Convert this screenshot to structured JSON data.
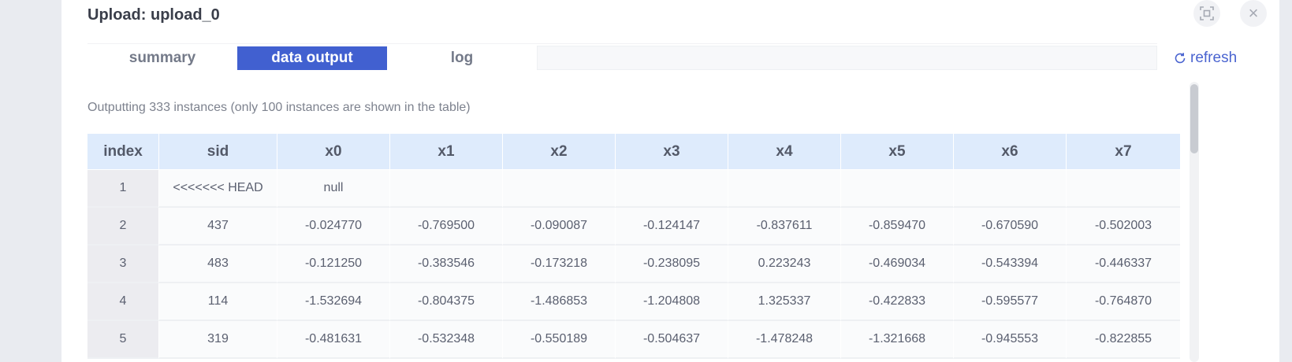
{
  "dialog": {
    "title": "Upload: upload_0",
    "close_label": "×"
  },
  "tabs": [
    {
      "label": "summary",
      "active": false
    },
    {
      "label": "data output",
      "active": true
    },
    {
      "label": "log",
      "active": false
    }
  ],
  "refresh_label": "refresh",
  "info_text": "Outputting 333 instances (only 100 instances are shown in the table)",
  "table": {
    "columns": [
      "index",
      "sid",
      "x0",
      "x1",
      "x2",
      "x3",
      "x4",
      "x5",
      "x6",
      "x7"
    ],
    "rows": [
      [
        "1",
        "<<<<<<< HEAD",
        "null",
        "",
        "",
        "",
        "",
        "",
        "",
        ""
      ],
      [
        "2",
        "437",
        "-0.024770",
        "-0.769500",
        "-0.090087",
        "-0.124147",
        "-0.837611",
        "-0.859470",
        "-0.670590",
        "-0.502003"
      ],
      [
        "3",
        "483",
        "-0.121250",
        "-0.383546",
        "-0.173218",
        "-0.238095",
        "0.223243",
        "-0.469034",
        "-0.543394",
        "-0.446337"
      ],
      [
        "4",
        "114",
        "-1.532694",
        "-0.804375",
        "-1.486853",
        "-1.204808",
        "1.325337",
        "-0.422833",
        "-0.595577",
        "-0.764870"
      ],
      [
        "5",
        "319",
        "-0.481631",
        "-0.532348",
        "-0.550189",
        "-0.504637",
        "-1.478248",
        "-1.321668",
        "-0.945553",
        "-0.822855"
      ]
    ]
  },
  "colors": {
    "accent": "#4160d0",
    "link": "#4a64d0",
    "header_bg": "#deebfc"
  }
}
